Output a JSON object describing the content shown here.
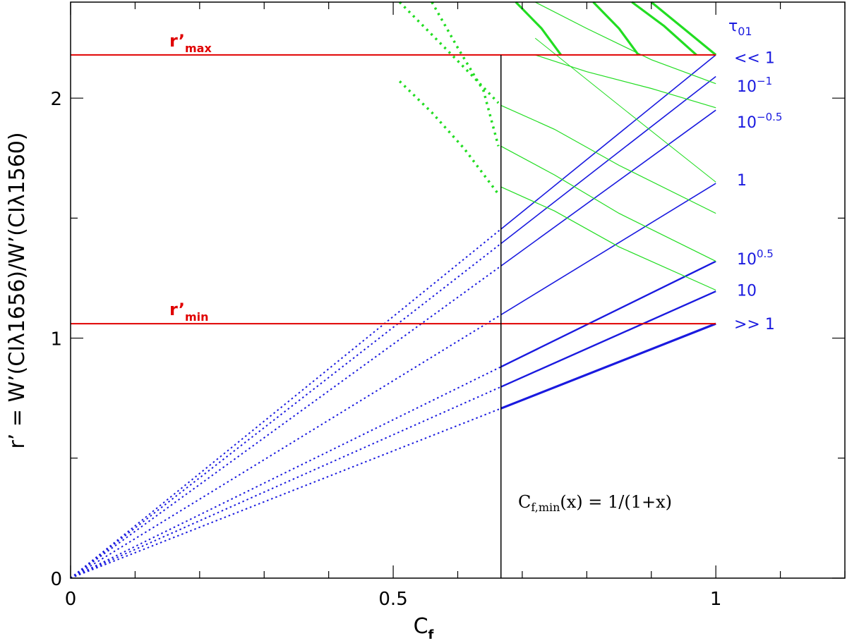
{
  "chart_data": {
    "type": "line",
    "xlabel": "C",
    "xlabel_sub": "f",
    "ylabel": "r’  =  W’(CIλ1656)/W’(CIλ1560)",
    "xlim": [
      0,
      1.2
    ],
    "ylim": [
      0,
      2.4
    ],
    "x_ticks": [
      {
        "value": 0,
        "label": "0"
      },
      {
        "value": 0.5,
        "label": "0.5"
      },
      {
        "value": 1,
        "label": "1"
      }
    ],
    "y_ticks": [
      {
        "value": 0,
        "label": "0"
      },
      {
        "value": 1,
        "label": "1"
      },
      {
        "value": 2,
        "label": "2"
      }
    ],
    "x_minor_step": 0.1,
    "y_minor_step": 0.5,
    "colors": {
      "blue": "#1a1adf",
      "green": "#22dd22",
      "red": "#e00000",
      "black": "#000000"
    },
    "cf_min_line": {
      "x": 0.667,
      "y_range": [
        0,
        2.18
      ],
      "annotation": "C",
      "annotation_sub": "f,min",
      "annotation_rest": "(x) = 1/(1+x)"
    },
    "reference_lines": [
      {
        "name": "r’",
        "sub": "max",
        "y": 2.18
      },
      {
        "name": "r’",
        "sub": "min",
        "y": 1.06
      }
    ],
    "blue_series": [
      {
        "y_at_cf1": 2.18,
        "width": 1.6
      },
      {
        "y_at_cf1": 2.09,
        "width": 1.6
      },
      {
        "y_at_cf1": 1.95,
        "width": 1.6
      },
      {
        "y_at_cf1": 1.645,
        "width": 1.6
      },
      {
        "y_at_cf1": 1.32,
        "width": 2.4
      },
      {
        "y_at_cf1": 1.195,
        "width": 2.4
      },
      {
        "y_at_cf1": 1.06,
        "width": 3.2
      }
    ],
    "tau_labels": {
      "title": "τ",
      "title_sub": "01",
      "items": [
        {
          "label": "<< 1",
          "y": 2.17
        },
        {
          "label": "10",
          "sup": "−1",
          "y": 2.05
        },
        {
          "label": "10",
          "sup": "−0.5",
          "y": 1.9
        },
        {
          "label": "1",
          "y": 1.66
        },
        {
          "label": "10",
          "sup": "0.5",
          "y": 1.33
        },
        {
          "label": "10",
          "y": 1.2
        },
        {
          "label": ">> 1",
          "y": 1.06
        }
      ]
    },
    "green_series": [
      {
        "x_range": [
          0.667,
          1.0
        ],
        "width": 1.2,
        "x_pts": [
          0.667,
          0.75,
          0.85,
          1.0
        ],
        "y_pts": [
          1.97,
          1.87,
          1.72,
          1.52
        ]
      },
      {
        "x_range": [
          0.667,
          1.0
        ],
        "width": 1.2,
        "x_pts": [
          0.667,
          0.75,
          0.85,
          1.0
        ],
        "y_pts": [
          1.8,
          1.68,
          1.52,
          1.32
        ]
      },
      {
        "x_range": [
          0.667,
          1.0
        ],
        "width": 1.2,
        "x_pts": [
          0.667,
          0.75,
          0.85,
          1.0
        ],
        "y_pts": [
          1.63,
          1.53,
          1.38,
          1.2
        ]
      },
      {
        "x_range": [
          0.72,
          1.0
        ],
        "width": 1.2,
        "x_pts": [
          0.72,
          0.8,
          0.9,
          1.0
        ],
        "y_pts": [
          2.18,
          2.11,
          2.04,
          1.96
        ]
      },
      {
        "x_range": [
          0.72,
          1.0
        ],
        "width": 1.2,
        "x_pts": [
          0.72,
          0.8,
          0.9,
          1.0
        ],
        "y_pts": [
          2.4,
          2.29,
          2.16,
          2.06
        ]
      },
      {
        "x_range": [
          0.72,
          1.0
        ],
        "width": 1.0,
        "x_pts": [
          0.72,
          0.85,
          1.0
        ],
        "y_pts": [
          2.25,
          1.97,
          1.65
        ]
      },
      {
        "x_range": [
          0.69,
          0.76
        ],
        "width": 3.2,
        "x_pts": [
          0.69,
          0.73,
          0.76
        ],
        "y_pts": [
          2.4,
          2.29,
          2.18
        ]
      },
      {
        "x_range": [
          0.81,
          0.88
        ],
        "width": 3.2,
        "x_pts": [
          0.81,
          0.85,
          0.88
        ],
        "y_pts": [
          2.4,
          2.29,
          2.18
        ]
      },
      {
        "x_range": [
          0.87,
          0.97
        ],
        "width": 3.2,
        "x_pts": [
          0.87,
          0.92,
          0.97
        ],
        "y_pts": [
          2.4,
          2.3,
          2.18
        ]
      },
      {
        "x_range": [
          0.9,
          1.0
        ],
        "width": 3.2,
        "x_pts": [
          0.9,
          0.95,
          1.0
        ],
        "y_pts": [
          2.4,
          2.29,
          2.18
        ]
      }
    ],
    "green_dotted_series": [
      {
        "x_pts": [
          0.51,
          0.58,
          0.62,
          0.663
        ],
        "y_pts": [
          2.4,
          2.21,
          2.1,
          1.98
        ]
      },
      {
        "x_pts": [
          0.56,
          0.6,
          0.64,
          0.663
        ],
        "y_pts": [
          2.4,
          2.21,
          2.03,
          1.8
        ]
      },
      {
        "x_pts": [
          0.51,
          0.56,
          0.61,
          0.663
        ],
        "y_pts": [
          2.07,
          1.94,
          1.79,
          1.6
        ]
      }
    ]
  }
}
